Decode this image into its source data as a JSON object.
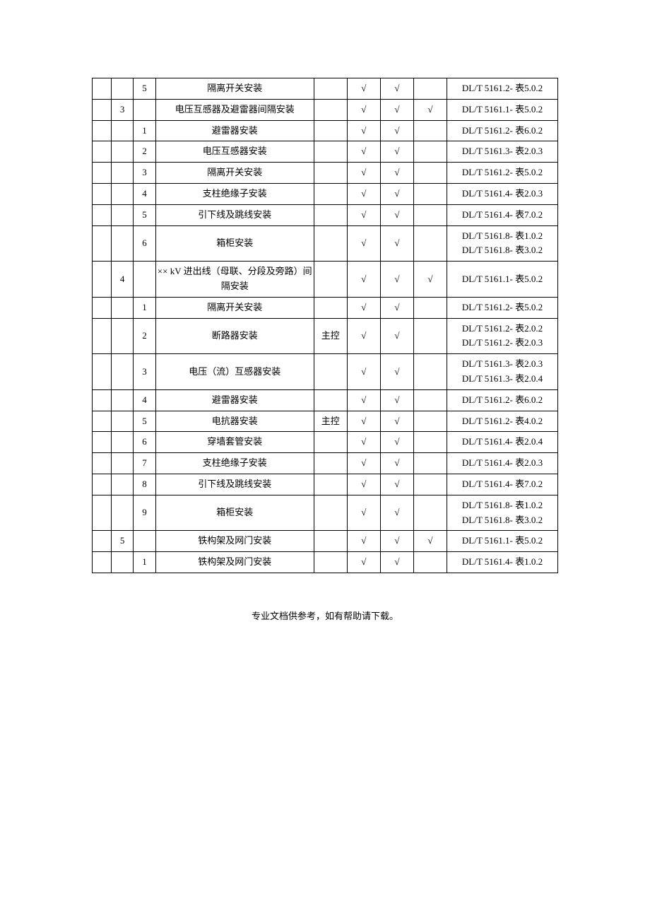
{
  "checkmark": "√",
  "rows": [
    {
      "b": "",
      "c": "5",
      "desc": "隔离开关安装",
      "e": "",
      "f": true,
      "g": true,
      "h": false,
      "ref": "DL/T 5161.2- 表5.0.2"
    },
    {
      "b": "3",
      "c": "",
      "desc": "电压互感器及避雷器间隔安装",
      "e": "",
      "f": true,
      "g": true,
      "h": true,
      "ref": "DL/T 5161.1- 表5.0.2"
    },
    {
      "b": "",
      "c": "1",
      "desc": "避雷器安装",
      "e": "",
      "f": true,
      "g": true,
      "h": false,
      "ref": "DL/T 5161.2- 表6.0.2"
    },
    {
      "b": "",
      "c": "2",
      "desc": "电压互感器安装",
      "e": "",
      "f": true,
      "g": true,
      "h": false,
      "ref": "DL/T 5161.3- 表2.0.3"
    },
    {
      "b": "",
      "c": "3",
      "desc": "隔离开关安装",
      "e": "",
      "f": true,
      "g": true,
      "h": false,
      "ref": "DL/T 5161.2- 表5.0.2"
    },
    {
      "b": "",
      "c": "4",
      "desc": "支柱绝缘子安装",
      "e": "",
      "f": true,
      "g": true,
      "h": false,
      "ref": "DL/T 5161.4- 表2.0.3"
    },
    {
      "b": "",
      "c": "5",
      "desc": "引下线及跳线安装",
      "e": "",
      "f": true,
      "g": true,
      "h": false,
      "ref": "DL/T 5161.4- 表7.0.2"
    },
    {
      "b": "",
      "c": "6",
      "desc": "箱柜安装",
      "e": "",
      "f": true,
      "g": true,
      "h": false,
      "ref": "DL/T 5161.8- 表1.0.2\nDL/T 5161.8- 表3.0.2"
    },
    {
      "b": "4",
      "c": "",
      "desc": "×× kV 进出线（母联、分段及旁路）间隔安装",
      "e": "",
      "f": true,
      "g": true,
      "h": true,
      "ref": "DL/T 5161.1- 表5.0.2"
    },
    {
      "b": "",
      "c": "1",
      "desc": "隔离开关安装",
      "e": "",
      "f": true,
      "g": true,
      "h": false,
      "ref": "DL/T 5161.2- 表5.0.2"
    },
    {
      "b": "",
      "c": "2",
      "desc": "断路器安装",
      "e": "主控",
      "f": true,
      "g": true,
      "h": false,
      "ref": "DL/T 5161.2- 表2.0.2\nDL/T 5161.2- 表2.0.3"
    },
    {
      "b": "",
      "c": "3",
      "desc": "电压（流）互感器安装",
      "e": "",
      "f": true,
      "g": true,
      "h": false,
      "ref": "DL/T 5161.3- 表2.0.3\nDL/T 5161.3- 表2.0.4"
    },
    {
      "b": "",
      "c": "4",
      "desc": "避雷器安装",
      "e": "",
      "f": true,
      "g": true,
      "h": false,
      "ref": "DL/T 5161.2- 表6.0.2"
    },
    {
      "b": "",
      "c": "5",
      "desc": "电抗器安装",
      "e": "主控",
      "f": true,
      "g": true,
      "h": false,
      "ref": "DL/T 5161.2- 表4.0.2"
    },
    {
      "b": "",
      "c": "6",
      "desc": "穿墙套管安装",
      "e": "",
      "f": true,
      "g": true,
      "h": false,
      "ref": "DL/T 5161.4- 表2.0.4"
    },
    {
      "b": "",
      "c": "7",
      "desc": "支柱绝缘子安装",
      "e": "",
      "f": true,
      "g": true,
      "h": false,
      "ref": "DL/T 5161.4- 表2.0.3"
    },
    {
      "b": "",
      "c": "8",
      "desc": "引下线及跳线安装",
      "e": "",
      "f": true,
      "g": true,
      "h": false,
      "ref": "DL/T 5161.4- 表7.0.2"
    },
    {
      "b": "",
      "c": "9",
      "desc": "箱柜安装",
      "e": "",
      "f": true,
      "g": true,
      "h": false,
      "ref": "DL/T 5161.8- 表1.0.2\nDL/T 5161.8- 表3.0.2"
    },
    {
      "b": "5",
      "c": "",
      "desc": "铁构架及网门安装",
      "e": "",
      "f": true,
      "g": true,
      "h": true,
      "ref": "DL/T 5161.1- 表5.0.2"
    },
    {
      "b": "",
      "c": "1",
      "desc": "铁构架及网门安装",
      "e": "",
      "f": true,
      "g": true,
      "h": false,
      "ref": "DL/T 5161.4- 表1.0.2"
    }
  ],
  "footer": "专业文档供参考，如有帮助请下载。"
}
